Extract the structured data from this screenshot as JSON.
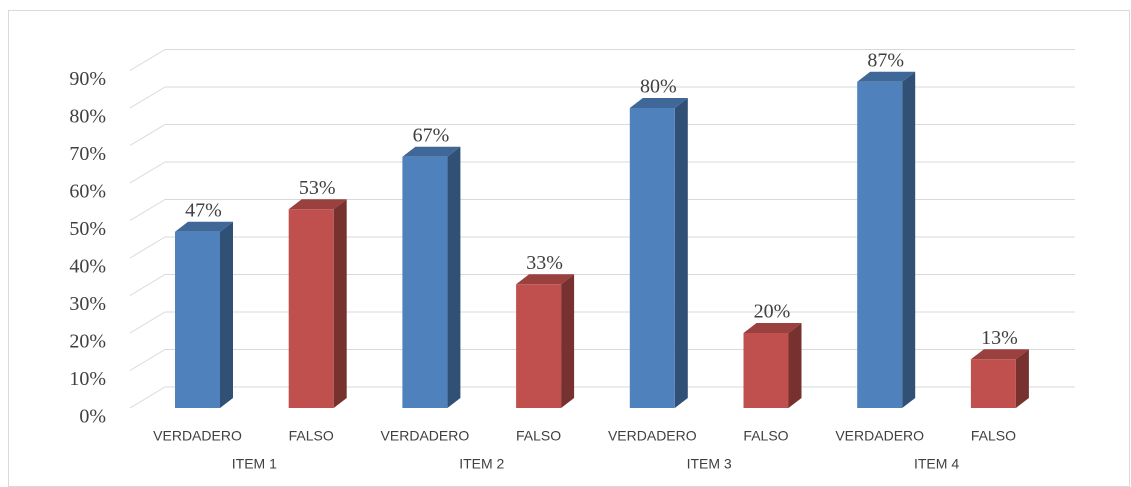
{
  "chart_data": {
    "type": "bar3d",
    "categories": [
      "ITEM 1",
      "ITEM 2",
      "ITEM 3",
      "ITEM 4"
    ],
    "series": [
      {
        "name": "VERDADERO",
        "color": "#4f81bd",
        "values": [
          47,
          67,
          80,
          87
        ],
        "value_labels": [
          "47%",
          "67%",
          "80%",
          "87%"
        ]
      },
      {
        "name": "FALSO",
        "color": "#c0504d",
        "values": [
          53,
          33,
          20,
          13
        ],
        "value_labels": [
          "53%",
          "33%",
          "20%",
          "13%"
        ]
      }
    ],
    "ylim": [
      0,
      90
    ],
    "yticks": [
      {
        "value": 0,
        "label": "0%"
      },
      {
        "value": 10,
        "label": "10%"
      },
      {
        "value": 20,
        "label": "20%"
      },
      {
        "value": 30,
        "label": "30%"
      },
      {
        "value": 40,
        "label": "40%"
      },
      {
        "value": 50,
        "label": "50%"
      },
      {
        "value": 60,
        "label": "60%"
      },
      {
        "value": 70,
        "label": "70%"
      },
      {
        "value": 80,
        "label": "80%"
      },
      {
        "value": 90,
        "label": "90%"
      }
    ],
    "grid": true
  }
}
